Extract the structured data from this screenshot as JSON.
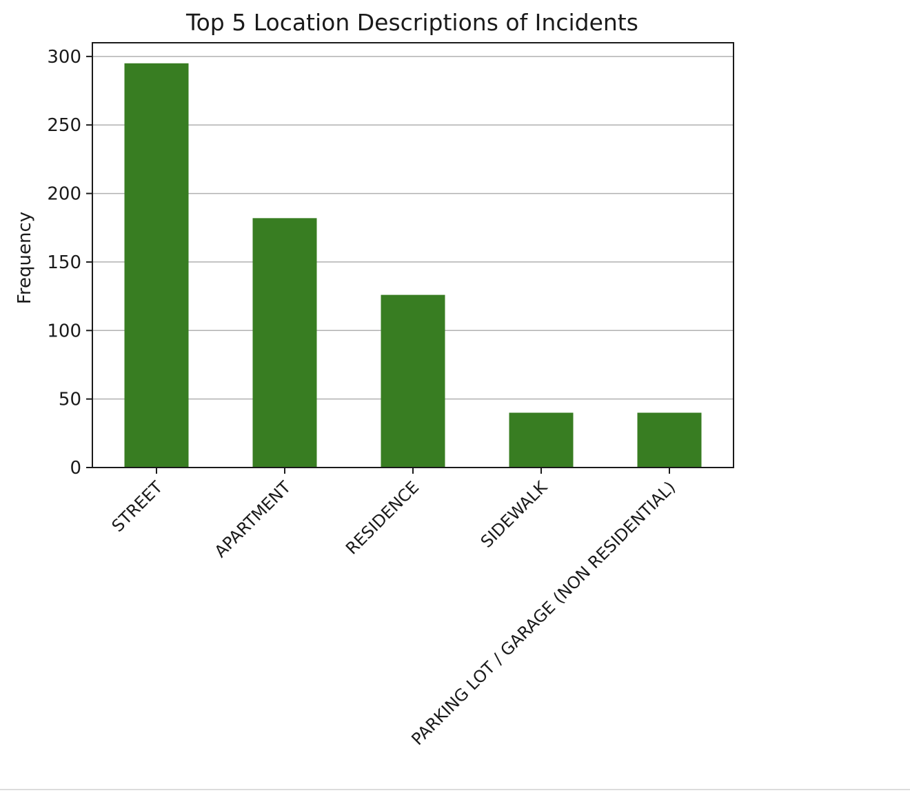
{
  "chart_data": {
    "type": "bar",
    "title": "Top 5 Location Descriptions of Incidents",
    "xlabel": "",
    "ylabel": "Frequency",
    "categories": [
      "STREET",
      "APARTMENT",
      "RESIDENCE",
      "SIDEWALK",
      "PARKING LOT / GARAGE (NON RESIDENTIAL)"
    ],
    "values": [
      295,
      182,
      126,
      40,
      40
    ],
    "ylim": [
      0,
      310
    ],
    "yticks": [
      0,
      50,
      100,
      150,
      200,
      250,
      300
    ],
    "ytick_labels": [
      "0",
      "50",
      "100",
      "150",
      "200",
      "250",
      "300"
    ],
    "grid": "y-axis",
    "legend": "none",
    "bar_color": "#387d22",
    "grid_color": "#b0b0b0",
    "xtick_rotation_deg": -45
  }
}
